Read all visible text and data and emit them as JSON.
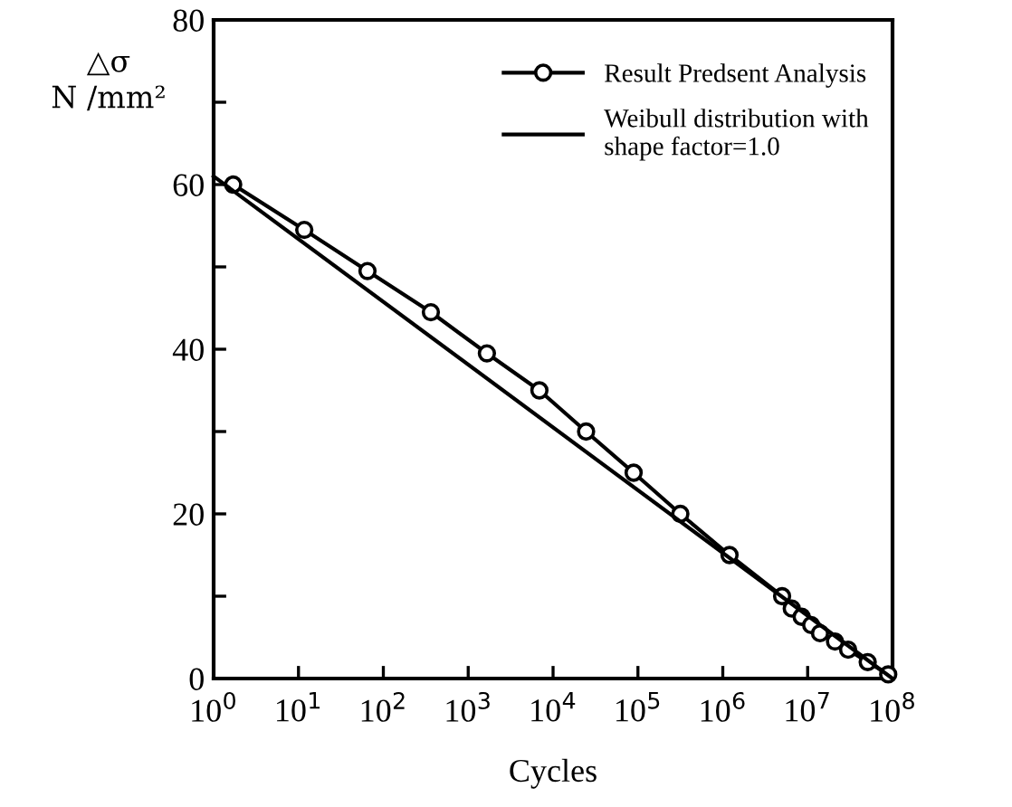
{
  "chart_data": {
    "type": "line",
    "xlabel": "Cycles",
    "ylabel": "△σ\nN /mm²",
    "log": "x",
    "xlim": [
      1,
      100000000
    ],
    "ylim": [
      0,
      80
    ],
    "xticks": [
      {
        "value": 1,
        "label": "10$^{0}$"
      },
      {
        "value": 10,
        "label": "10$^{1}$"
      },
      {
        "value": 100,
        "label": "10$^{2}$"
      },
      {
        "value": 1000,
        "label": "10$^{3}$"
      },
      {
        "value": 10000,
        "label": "10$^{4}$"
      },
      {
        "value": 100000,
        "label": "10$^{5}$"
      },
      {
        "value": 1000000,
        "label": "10$^{6}$"
      },
      {
        "value": 10000000,
        "label": "10$^{7}$"
      },
      {
        "value": 100000000,
        "label": "10$^{8}$"
      }
    ],
    "yticks": [
      0,
      {
        "value": 10,
        "label": null
      },
      20,
      {
        "value": 30,
        "label": null
      },
      40,
      {
        "value": 50,
        "label": null
      },
      60,
      {
        "value": 70,
        "label": null
      },
      80
    ],
    "grid": false,
    "legend": "top right",
    "series": [
      {
        "name": "Result Predsent Analysis",
        "color": "#000000",
        "marker": "circle",
        "x": [
          1.7,
          11.7,
          65,
          363,
          1660,
          6900,
          24500,
          89000,
          316000,
          1200000,
          5000000,
          6500000,
          8500000,
          11000000,
          14000000,
          21000000,
          30000000,
          51000000,
          89000000
        ],
        "values": [
          60,
          54.5,
          49.5,
          44.5,
          39.5,
          35,
          30,
          25,
          20,
          15,
          10,
          8.5,
          7.5,
          6.5,
          5.5,
          4.5,
          3.5,
          2,
          0.5
        ]
      },
      {
        "name": "Weibull distribution with\nshape factor=1.0",
        "color": "#000000",
        "marker": "none",
        "x": [
          1,
          100000000
        ],
        "values": [
          61,
          0
        ]
      }
    ]
  }
}
